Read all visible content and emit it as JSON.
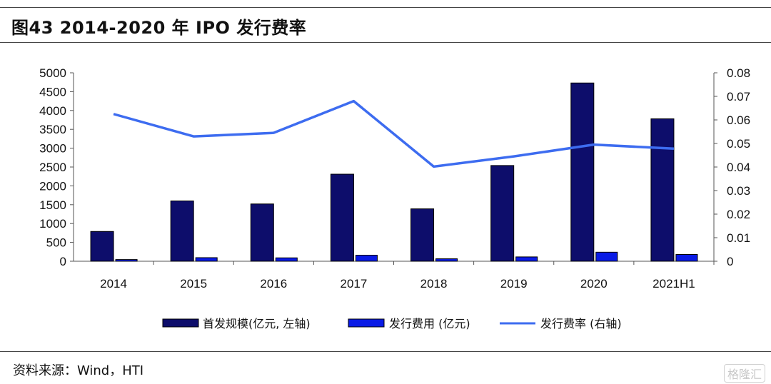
{
  "header": {
    "title": "图43 2014-2020 年 IPO 发行费率"
  },
  "source": {
    "text": "资料来源：Wind，HTI"
  },
  "watermark": {
    "text": "格隆汇"
  },
  "colors": {
    "bar1": "#0d0d6b",
    "bar2": "#0a1be6",
    "line": "#3d6cf0"
  },
  "chart_data": {
    "type": "bar",
    "categories": [
      "2014",
      "2015",
      "2016",
      "2017",
      "2018",
      "2019",
      "2020",
      "2021H1"
    ],
    "series": [
      {
        "name": "首发规模(亿元, 左轴)",
        "type": "bar",
        "axis": "left",
        "values": [
          790,
          1600,
          1520,
          2310,
          1390,
          2540,
          4730,
          3780
        ]
      },
      {
        "name": "发行费用 (亿元)",
        "type": "bar",
        "axis": "left",
        "values": [
          45,
          95,
          90,
          160,
          65,
          115,
          240,
          180
        ]
      },
      {
        "name": "发行费率 (右轴)",
        "type": "line",
        "axis": "right",
        "values": [
          0.0625,
          0.053,
          0.0545,
          0.068,
          0.0402,
          0.0445,
          0.0495,
          0.0478
        ]
      }
    ],
    "y_left": {
      "min": 0,
      "max": 5000,
      "ticks": [
        "0",
        "500",
        "1000",
        "1500",
        "2000",
        "2500",
        "3000",
        "3500",
        "4000",
        "4500",
        "5000"
      ]
    },
    "y_right": {
      "min": 0,
      "max": 0.08,
      "ticks": [
        "0",
        "0.01",
        "0.02",
        "0.03",
        "0.04",
        "0.05",
        "0.06",
        "0.07",
        "0.08"
      ]
    },
    "grid": false,
    "legend_position": "bottom"
  }
}
